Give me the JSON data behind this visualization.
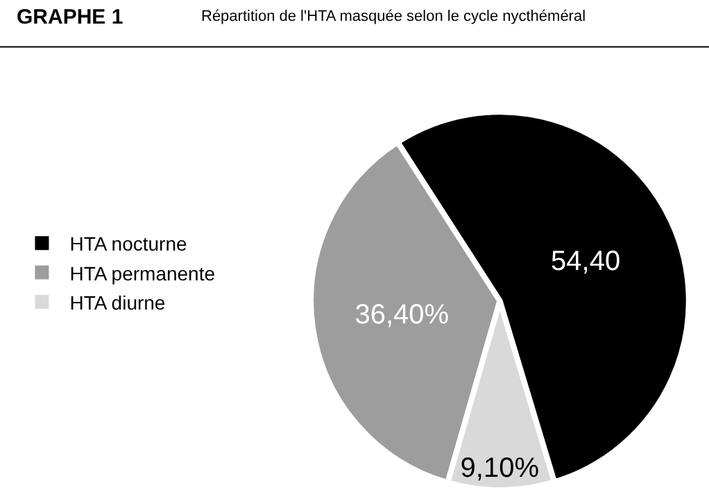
{
  "chart_data": {
    "type": "pie",
    "title": "GRAPHE 1",
    "subtitle": "Répartition de l'HTA masquée selon le cycle nycthéméral",
    "categories": [
      "HTA nocturne",
      "HTA permanente",
      "HTA diurne"
    ],
    "values": [
      54.4,
      36.4,
      9.1
    ],
    "colors": [
      "#000000",
      "#9d9d9d",
      "#d9d9d9"
    ],
    "value_labels": [
      "54,40",
      "36,40%",
      "9,10%"
    ],
    "legend": "left"
  }
}
